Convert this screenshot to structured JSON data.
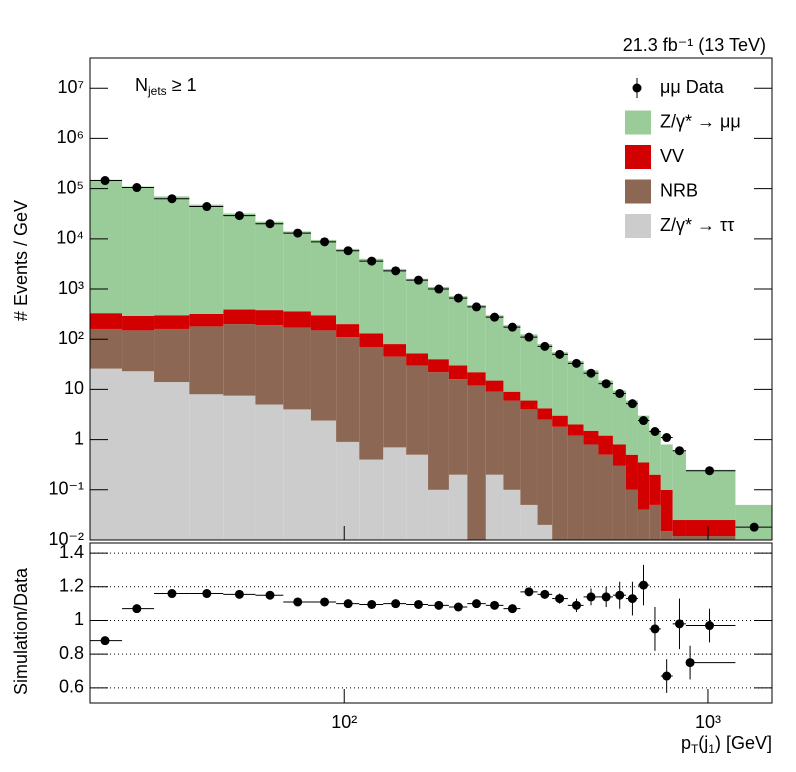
{
  "chart_data": [
    {
      "type": "stacked-histogram",
      "lumi": "21.3 fb⁻¹ (13 TeV)",
      "annotation": [
        "N",
        "jets",
        " ≥ 1"
      ],
      "y_label": "# Events / GeV",
      "log_y": true,
      "log_x": true,
      "xlim": [
        20,
        1500
      ],
      "ylim": [
        0.01,
        40000000
      ],
      "yticks": [
        {
          "value": 0.01,
          "label": "10⁻²"
        },
        {
          "value": 0.1,
          "label": "10⁻¹"
        },
        1,
        10,
        {
          "value": 100,
          "label": "10²"
        },
        {
          "value": 1000,
          "label": "10³"
        },
        {
          "value": 10000,
          "label": "10⁴"
        },
        {
          "value": 100000,
          "label": "10⁵"
        },
        {
          "value": 1000000,
          "label": "10⁶"
        },
        {
          "value": 10000000,
          "label": "10⁷"
        }
      ],
      "legend": "upper right",
      "bins": [
        20,
        24.5,
        30,
        37.5,
        46.5,
        57,
        68,
        81,
        95,
        110,
        128,
        148,
        170,
        194,
        218,
        245,
        274,
        305,
        340,
        373,
        412,
        455,
        500,
        548,
        595,
        642,
        690,
        742,
        800,
        870,
        1190,
        1500
      ],
      "series": [
        {
          "name": "Z/γ* → ττ",
          "color": "#cccccc",
          "values": [
            26,
            23,
            14,
            8,
            7.5,
            5,
            4,
            2.4,
            0.9,
            0.4,
            0.7,
            0.5,
            0.1,
            0.2,
            0,
            0.2,
            0.1,
            0.05,
            0.02,
            0.01,
            0,
            0,
            0,
            0,
            0,
            0,
            0,
            0,
            0,
            0,
            0
          ]
        },
        {
          "name": "NRB",
          "color": "#8c6753",
          "values": [
            134,
            127,
            146,
            172,
            192.5,
            185,
            166,
            147.6,
            109.1,
            69.6,
            44.3,
            29.5,
            21.9,
            15.8,
            12,
            8.8,
            5.9,
            3.95,
            2.48,
            1.79,
            1.2,
            0.8,
            0.5,
            0.3,
            0.1,
            0.04,
            0.05,
            0.015,
            0.012,
            0.012,
            0
          ]
        },
        {
          "name": "VV",
          "color": "#d20000",
          "values": [
            170,
            140,
            140,
            140,
            190,
            190,
            190,
            150,
            90,
            60,
            35,
            22,
            18,
            14,
            10,
            6,
            3,
            2,
            1.7,
            1.2,
            0.8,
            0.7,
            0.7,
            0.5,
            0.4,
            0.31,
            0.15,
            0.085,
            0.013,
            0.013,
            0
          ]
        },
        {
          "name": "Z/γ* → μμ",
          "color": "#99cc99",
          "values": [
            149670,
            109710,
            69700,
            47680,
            31610,
            21620,
            13640,
            9200,
            6100,
            3870,
            2420,
            1548,
            1060,
            690,
            458,
            285,
            181,
            119,
            75.8,
            52,
            35,
            22.5,
            13.8,
            8.7,
            5.5,
            2.65,
            1.3,
            0.7,
            0.575,
            0.225,
            0.05
          ]
        }
      ],
      "data": {
        "name": "μμ Data",
        "color": "#000000",
        "x": [
          22,
          26.9,
          33.6,
          41.9,
          51.5,
          62.5,
          74.5,
          88.3,
          102.5,
          119,
          138.5,
          160,
          182,
          206,
          231,
          259,
          290,
          322,
          356,
          391,
          435,
          477,
          525,
          572,
          620,
          665,
          715,
          770,
          835,
          1010,
          1340
        ],
        "values": [
          145000,
          105000,
          63000,
          44000,
          29000,
          20000,
          13000,
          8700,
          5800,
          3600,
          2300,
          1500,
          1000,
          660,
          440,
          275,
          174,
          110,
          72,
          50,
          33,
          21,
          13,
          8.3,
          5.2,
          2.4,
          1.45,
          1.1,
          0.6,
          0.24,
          0.018
        ]
      }
    },
    {
      "type": "ratio",
      "y_label": "Simulation/Data",
      "x_label": [
        "p",
        "T",
        "(j",
        "1",
        ") [GeV]"
      ],
      "log_x": true,
      "xlim": [
        20,
        1500
      ],
      "xticks": [
        {
          "value": 100,
          "label": "10²"
        },
        {
          "value": 1000,
          "label": "10³"
        }
      ],
      "ylim": [
        0.51,
        1.46
      ],
      "yticks": [
        0.6,
        0.8,
        1,
        1.2,
        1.4
      ],
      "grid": true,
      "x": [
        22,
        26.9,
        33.6,
        41.9,
        51.5,
        62.5,
        74.5,
        88.3,
        102.5,
        119,
        138.5,
        160,
        182,
        206,
        231,
        259,
        290,
        322,
        356,
        391,
        435,
        477,
        525,
        572,
        620,
        665,
        715,
        770,
        835,
        893,
        1010
      ],
      "values": [
        0.88,
        1.07,
        1.16,
        1.16,
        1.155,
        1.15,
        1.11,
        1.11,
        1.1,
        1.095,
        1.1,
        1.095,
        1.09,
        1.08,
        1.1,
        1.09,
        1.07,
        1.17,
        1.155,
        1.13,
        1.09,
        1.14,
        1.14,
        1.15,
        1.13,
        1.21,
        0.95,
        0.67,
        0.98,
        0.75,
        0.97
      ],
      "errors": [
        0.005,
        0.005,
        0.005,
        0.005,
        0.005,
        0.005,
        0.005,
        0.005,
        0.005,
        0.005,
        0.005,
        0.005,
        0.005,
        0.005,
        0.01,
        0.01,
        0.015,
        0.02,
        0.025,
        0.03,
        0.04,
        0.05,
        0.06,
        0.08,
        0.1,
        0.12,
        0.13,
        0.1,
        0.15,
        0.1,
        0.1
      ]
    }
  ]
}
